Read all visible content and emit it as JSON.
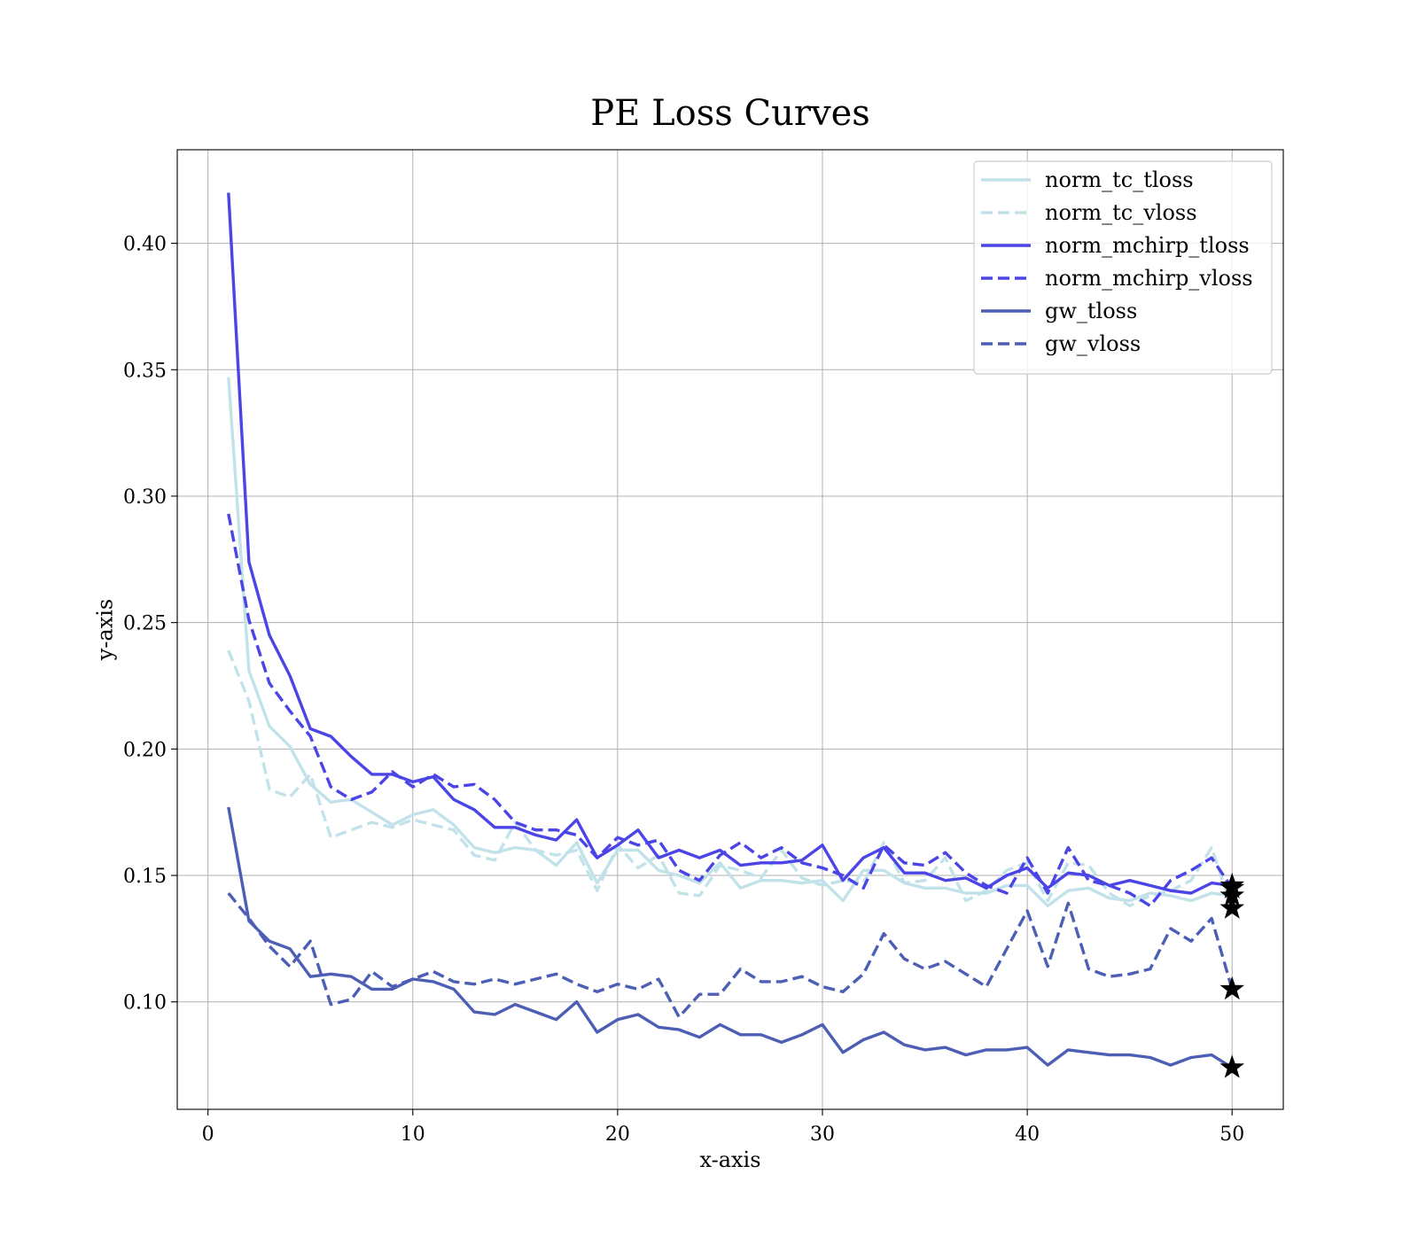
{
  "chart_data": {
    "type": "line",
    "title": "PE Loss Curves",
    "xlabel": "x-axis",
    "ylabel": "y-axis",
    "xlim": [
      -1.5,
      52.5
    ],
    "ylim": [
      0.0575,
      0.437
    ],
    "xticks": [
      0,
      10,
      20,
      30,
      40,
      50
    ],
    "yticks": [
      0.1,
      0.15,
      0.2,
      0.25,
      0.3,
      0.35,
      0.4
    ],
    "ytick_labels": [
      "0.10",
      "0.15",
      "0.20",
      "0.25",
      "0.30",
      "0.35",
      "0.40"
    ],
    "grid": true,
    "legend_position": "top-right",
    "x": [
      1,
      2,
      3,
      4,
      5,
      6,
      7,
      8,
      9,
      10,
      11,
      12,
      13,
      14,
      15,
      16,
      17,
      18,
      19,
      20,
      21,
      22,
      23,
      24,
      25,
      26,
      27,
      28,
      29,
      30,
      31,
      32,
      33,
      34,
      35,
      36,
      37,
      38,
      39,
      40,
      41,
      42,
      43,
      44,
      45,
      46,
      47,
      48,
      49,
      50
    ],
    "series": [
      {
        "name": "norm_tc_tloss",
        "color": "#c2e2ea",
        "dashed": false,
        "values": [
          0.347,
          0.231,
          0.209,
          0.201,
          0.186,
          0.179,
          0.18,
          0.175,
          0.17,
          0.174,
          0.176,
          0.17,
          0.161,
          0.159,
          0.161,
          0.16,
          0.154,
          0.163,
          0.147,
          0.16,
          0.16,
          0.152,
          0.15,
          0.147,
          0.155,
          0.145,
          0.148,
          0.148,
          0.147,
          0.148,
          0.14,
          0.152,
          0.152,
          0.147,
          0.145,
          0.145,
          0.143,
          0.143,
          0.146,
          0.146,
          0.138,
          0.144,
          0.145,
          0.141,
          0.14,
          0.143,
          0.142,
          0.14,
          0.143,
          0.142
        ]
      },
      {
        "name": "norm_tc_vloss",
        "color": "#c2e2ea",
        "dashed": true,
        "values": [
          0.239,
          0.219,
          0.184,
          0.181,
          0.19,
          0.165,
          0.168,
          0.171,
          0.169,
          0.172,
          0.17,
          0.168,
          0.158,
          0.156,
          0.171,
          0.16,
          0.158,
          0.16,
          0.144,
          0.162,
          0.153,
          0.158,
          0.143,
          0.142,
          0.154,
          0.152,
          0.149,
          0.16,
          0.149,
          0.146,
          0.148,
          0.147,
          0.163,
          0.147,
          0.148,
          0.157,
          0.14,
          0.144,
          0.152,
          0.155,
          0.14,
          0.155,
          0.154,
          0.143,
          0.138,
          0.142,
          0.144,
          0.148,
          0.161,
          0.137
        ]
      },
      {
        "name": "norm_mchirp_tloss",
        "color": "#4b44e6",
        "dashed": false,
        "values": [
          0.42,
          0.274,
          0.245,
          0.229,
          0.208,
          0.205,
          0.197,
          0.19,
          0.19,
          0.187,
          0.189,
          0.18,
          0.176,
          0.169,
          0.169,
          0.166,
          0.164,
          0.172,
          0.157,
          0.162,
          0.168,
          0.157,
          0.16,
          0.157,
          0.16,
          0.154,
          0.155,
          0.155,
          0.156,
          0.162,
          0.148,
          0.157,
          0.161,
          0.151,
          0.151,
          0.148,
          0.149,
          0.145,
          0.15,
          0.153,
          0.145,
          0.151,
          0.15,
          0.146,
          0.148,
          0.146,
          0.144,
          0.143,
          0.147,
          0.146
        ]
      },
      {
        "name": "norm_mchirp_vloss",
        "color": "#4b44e6",
        "dashed": true,
        "values": [
          0.293,
          0.251,
          0.226,
          0.215,
          0.205,
          0.185,
          0.18,
          0.183,
          0.191,
          0.185,
          0.19,
          0.185,
          0.186,
          0.18,
          0.171,
          0.168,
          0.168,
          0.166,
          0.157,
          0.165,
          0.162,
          0.164,
          0.152,
          0.148,
          0.158,
          0.163,
          0.157,
          0.161,
          0.155,
          0.153,
          0.15,
          0.145,
          0.162,
          0.155,
          0.154,
          0.159,
          0.151,
          0.146,
          0.143,
          0.157,
          0.143,
          0.161,
          0.148,
          0.146,
          0.143,
          0.138,
          0.148,
          0.152,
          0.157,
          0.145
        ]
      },
      {
        "name": "gw_tloss",
        "color": "#4d5fb5",
        "dashed": false,
        "values": [
          0.177,
          0.132,
          0.124,
          0.121,
          0.11,
          0.111,
          0.11,
          0.105,
          0.105,
          0.109,
          0.108,
          0.105,
          0.096,
          0.095,
          0.099,
          0.096,
          0.093,
          0.1,
          0.088,
          0.093,
          0.095,
          0.09,
          0.089,
          0.086,
          0.091,
          0.087,
          0.087,
          0.084,
          0.087,
          0.091,
          0.08,
          0.085,
          0.088,
          0.083,
          0.081,
          0.082,
          0.079,
          0.081,
          0.081,
          0.082,
          0.075,
          0.081,
          0.08,
          0.079,
          0.079,
          0.078,
          0.075,
          0.078,
          0.079,
          0.074
        ]
      },
      {
        "name": "gw_vloss",
        "color": "#4d5fb5",
        "dashed": true,
        "values": [
          0.143,
          0.133,
          0.122,
          0.114,
          0.124,
          0.099,
          0.101,
          0.112,
          0.106,
          0.109,
          0.112,
          0.108,
          0.107,
          0.109,
          0.107,
          0.109,
          0.111,
          0.107,
          0.104,
          0.107,
          0.105,
          0.109,
          0.094,
          0.103,
          0.103,
          0.113,
          0.108,
          0.108,
          0.11,
          0.106,
          0.104,
          0.111,
          0.127,
          0.117,
          0.113,
          0.116,
          0.111,
          0.106,
          0.121,
          0.136,
          0.114,
          0.139,
          0.113,
          0.11,
          0.111,
          0.113,
          0.129,
          0.124,
          0.133,
          0.105
        ]
      }
    ],
    "markers": [
      {
        "series": "norm_tc_tloss",
        "x": 50,
        "y": 0.142
      },
      {
        "series": "norm_tc_vloss",
        "x": 50,
        "y": 0.137
      },
      {
        "series": "norm_mchirp_tloss",
        "x": 50,
        "y": 0.146
      },
      {
        "series": "norm_mchirp_vloss",
        "x": 50,
        "y": 0.145
      },
      {
        "series": "gw_tloss",
        "x": 50,
        "y": 0.074
      },
      {
        "series": "gw_vloss",
        "x": 50,
        "y": 0.105
      }
    ],
    "marker_symbol": "star",
    "marker_color": "#000000"
  }
}
